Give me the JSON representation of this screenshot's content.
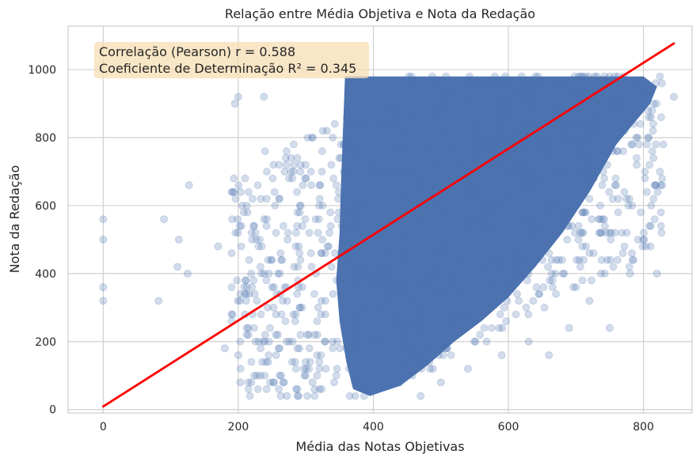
{
  "chart_data": {
    "type": "scatter",
    "title": "Relação entre Média Objetiva e Nota da Redação",
    "xlabel": "Média das Notas Objetivas",
    "ylabel": "Nota da Redação",
    "xlim": [
      -52,
      872
    ],
    "ylim": [
      -10,
      1128
    ],
    "xticks": [
      0,
      200,
      400,
      600,
      800
    ],
    "yticks": [
      0,
      200,
      400,
      600,
      800,
      1000
    ],
    "grid": true,
    "point_color": "#4c72b0",
    "point_alpha": 0.25,
    "dense_region": [
      [
        358,
        980
      ],
      [
        800,
        980
      ],
      [
        820,
        950
      ],
      [
        810,
        900
      ],
      [
        760,
        780
      ],
      [
        720,
        640
      ],
      [
        680,
        520
      ],
      [
        640,
        420
      ],
      [
        600,
        330
      ],
      [
        560,
        260
      ],
      [
        520,
        200
      ],
      [
        480,
        130
      ],
      [
        440,
        70
      ],
      [
        395,
        40
      ],
      [
        370,
        60
      ],
      [
        360,
        140
      ],
      [
        350,
        260
      ],
      [
        345,
        380
      ],
      [
        350,
        520
      ],
      [
        352,
        660
      ],
      [
        355,
        820
      ]
    ],
    "outliers": [
      {
        "x": 0,
        "y": 320
      },
      {
        "x": 0,
        "y": 360
      },
      {
        "x": 0,
        "y": 500
      },
      {
        "x": 0,
        "y": 560
      },
      {
        "x": 82,
        "y": 320
      },
      {
        "x": 90,
        "y": 560
      },
      {
        "x": 110,
        "y": 420
      },
      {
        "x": 112,
        "y": 500
      },
      {
        "x": 125,
        "y": 400
      },
      {
        "x": 127,
        "y": 660
      },
      {
        "x": 170,
        "y": 480
      },
      {
        "x": 180,
        "y": 180
      },
      {
        "x": 200,
        "y": 160
      },
      {
        "x": 203,
        "y": 80
      },
      {
        "x": 195,
        "y": 900
      },
      {
        "x": 200,
        "y": 920
      },
      {
        "x": 238,
        "y": 920
      },
      {
        "x": 272,
        "y": 40
      },
      {
        "x": 845,
        "y": 920
      },
      {
        "x": 820,
        "y": 400
      },
      {
        "x": 818,
        "y": 960
      },
      {
        "x": 780,
        "y": 400
      },
      {
        "x": 750,
        "y": 240
      },
      {
        "x": 720,
        "y": 320
      },
      {
        "x": 690,
        "y": 240
      },
      {
        "x": 660,
        "y": 160
      },
      {
        "x": 630,
        "y": 200
      },
      {
        "x": 590,
        "y": 160
      },
      {
        "x": 540,
        "y": 120
      },
      {
        "x": 500,
        "y": 80
      },
      {
        "x": 470,
        "y": 40
      },
      {
        "x": 300,
        "y": 140
      },
      {
        "x": 310,
        "y": 80
      }
    ],
    "regression_line": {
      "color": "#ff0000",
      "x": [
        0,
        845
      ],
      "y": [
        9,
        1077
      ]
    },
    "annotation": {
      "lines": [
        "Correlação (Pearson) r = 0.588",
        "Coeficiente de Determinação R² = 0.345"
      ],
      "box_color": "#f5deb3",
      "placement": "top-left"
    }
  }
}
